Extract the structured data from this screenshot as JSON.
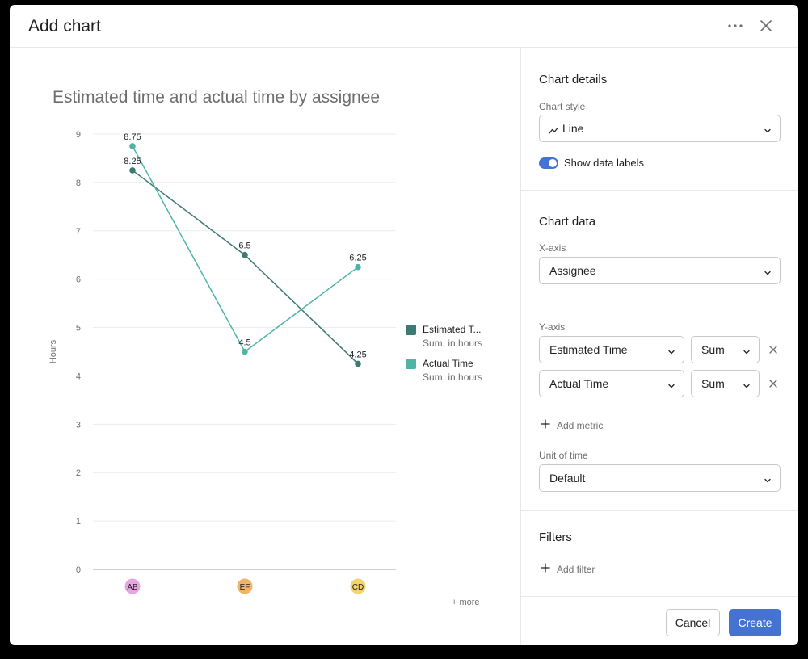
{
  "modal": {
    "title": "Add chart"
  },
  "chart_data": {
    "type": "line",
    "title": "Estimated time and actual time by assignee",
    "xlabel": "",
    "ylabel": "Hours",
    "categories": [
      "AB",
      "EF",
      "CD"
    ],
    "category_colors": [
      "#e8a6e0",
      "#f1b46b",
      "#f5d36a"
    ],
    "ylim": [
      0,
      9
    ],
    "yticks": [
      0,
      1,
      2,
      3,
      4,
      5,
      6,
      7,
      8,
      9
    ],
    "grid": true,
    "show_data_labels": true,
    "legend_position": "right",
    "series": [
      {
        "name": "Estimated T...",
        "subtitle": "Sum, in hours",
        "color": "#3d7a72",
        "values": [
          8.25,
          6.5,
          4.25
        ],
        "labels": [
          "8.25",
          "6.5",
          "4.25"
        ]
      },
      {
        "name": "Actual Time",
        "subtitle": "Sum, in hours",
        "color": "#4fb3a6",
        "values": [
          8.75,
          4.5,
          6.25
        ],
        "labels": [
          "8.75",
          "4.5",
          "6.25"
        ]
      }
    ],
    "more_label": "+ more"
  },
  "details": {
    "section_title": "Chart details",
    "chart_style_label": "Chart style",
    "chart_style_value": "Line",
    "chart_style_icon": "line-chart-icon",
    "toggle_label": "Show data labels",
    "toggle_on": true
  },
  "data_section": {
    "section_title": "Chart data",
    "x_axis_label": "X-axis",
    "x_axis_value": "Assignee",
    "y_axis_label": "Y-axis",
    "metrics": [
      {
        "field": "Estimated Time",
        "aggregation": "Sum"
      },
      {
        "field": "Actual Time",
        "aggregation": "Sum"
      }
    ],
    "add_metric_label": "Add metric",
    "unit_label": "Unit of time",
    "unit_value": "Default"
  },
  "filters": {
    "section_title": "Filters",
    "add_filter_label": "Add filter"
  },
  "footer": {
    "cancel_label": "Cancel",
    "create_label": "Create"
  },
  "colors": {
    "accent": "#4573d2"
  }
}
